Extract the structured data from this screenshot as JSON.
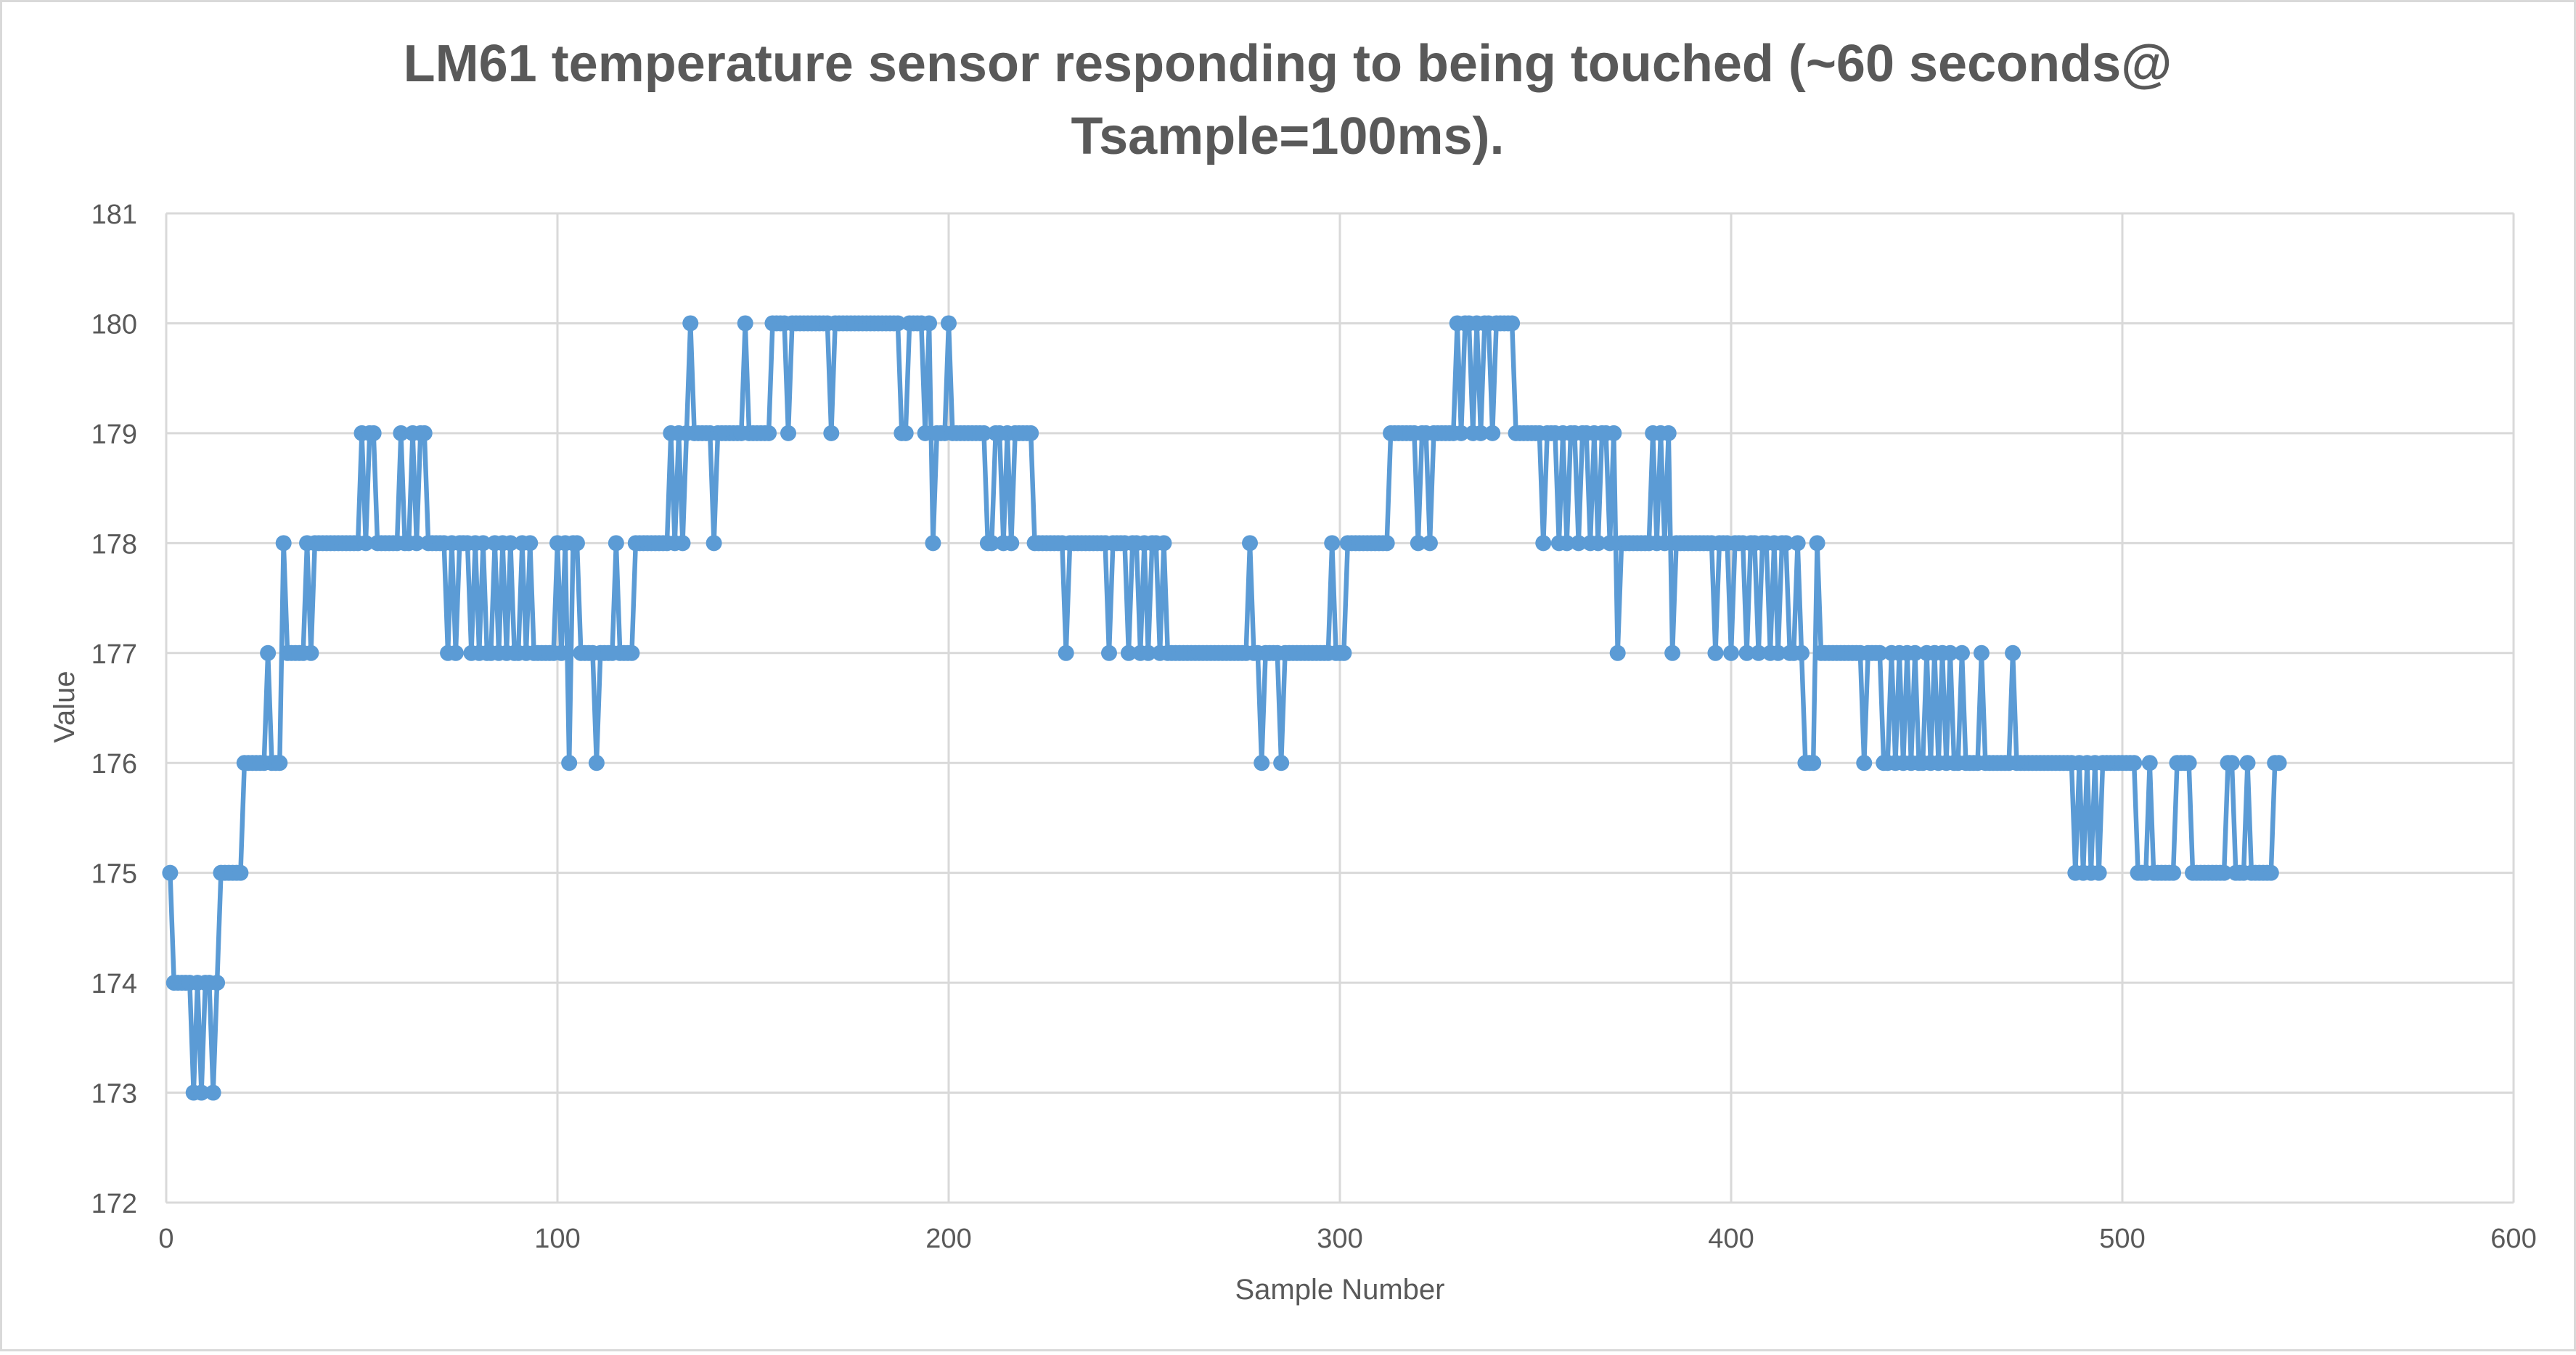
{
  "chart_data": {
    "type": "line",
    "title_lines": [
      "LM61 temperature sensor responding to being touched (~60 seconds@",
      "Tsample=100ms)."
    ],
    "xlabel": "Sample Number",
    "ylabel": "Value",
    "xlim": [
      0,
      600
    ],
    "ylim": [
      172,
      181
    ],
    "x_ticks": [
      0,
      100,
      200,
      300,
      400,
      500,
      600
    ],
    "y_ticks": [
      172,
      173,
      174,
      175,
      176,
      177,
      178,
      179,
      180,
      181
    ],
    "grid": true,
    "legend": "none",
    "markers": true,
    "colors": {
      "series": "#5B9BD5",
      "grid": "#D9D9D9",
      "title": "#595959",
      "axis_text": "#595959"
    },
    "series": [
      {
        "x_start": 1,
        "x_step": 1,
        "values": [
          175,
          174,
          174,
          174,
          174,
          174,
          173,
          174,
          173,
          174,
          174,
          173,
          174,
          175,
          175,
          175,
          175,
          175,
          175,
          176,
          176,
          176,
          176,
          176,
          176,
          177,
          176,
          176,
          176,
          178,
          177,
          177,
          177,
          177,
          177,
          178,
          177,
          178,
          178,
          178,
          178,
          178,
          178,
          178,
          178,
          178,
          178,
          178,
          178,
          179,
          178,
          179,
          179,
          178,
          178,
          178,
          178,
          178,
          178,
          179,
          178,
          178,
          179,
          178,
          179,
          179,
          178,
          178,
          178,
          178,
          178,
          177,
          178,
          177,
          178,
          178,
          178,
          177,
          178,
          177,
          178,
          177,
          177,
          178,
          177,
          178,
          177,
          178,
          177,
          177,
          178,
          177,
          178,
          177,
          177,
          177,
          177,
          177,
          177,
          178,
          177,
          178,
          176,
          178,
          178,
          177,
          177,
          177,
          177,
          176,
          177,
          177,
          177,
          177,
          178,
          177,
          177,
          177,
          177,
          178,
          178,
          178,
          178,
          178,
          178,
          178,
          178,
          178,
          179,
          178,
          179,
          178,
          179,
          180,
          179,
          179,
          179,
          179,
          179,
          178,
          179,
          179,
          179,
          179,
          179,
          179,
          179,
          180,
          179,
          179,
          179,
          179,
          179,
          179,
          180,
          180,
          180,
          180,
          179,
          180,
          180,
          180,
          180,
          180,
          180,
          180,
          180,
          180,
          180,
          179,
          180,
          180,
          180,
          180,
          180,
          180,
          180,
          180,
          180,
          180,
          180,
          180,
          180,
          180,
          180,
          180,
          180,
          179,
          179,
          180,
          180,
          180,
          180,
          179,
          180,
          178,
          179,
          179,
          179,
          180,
          179,
          179,
          179,
          179,
          179,
          179,
          179,
          179,
          179,
          178,
          178,
          179,
          179,
          178,
          179,
          178,
          179,
          179,
          179,
          179,
          179,
          178,
          178,
          178,
          178,
          178,
          178,
          178,
          178,
          177,
          178,
          178,
          178,
          178,
          178,
          178,
          178,
          178,
          178,
          178,
          177,
          178,
          178,
          178,
          178,
          177,
          178,
          178,
          177,
          178,
          177,
          178,
          178,
          177,
          178,
          177,
          177,
          177,
          177,
          177,
          177,
          177,
          177,
          177,
          177,
          177,
          177,
          177,
          177,
          177,
          177,
          177,
          177,
          177,
          177,
          177,
          178,
          177,
          177,
          176,
          177,
          177,
          177,
          177,
          176,
          177,
          177,
          177,
          177,
          177,
          177,
          177,
          177,
          177,
          177,
          177,
          177,
          178,
          177,
          177,
          177,
          178,
          178,
          178,
          178,
          178,
          178,
          178,
          178,
          178,
          178,
          178,
          179,
          179,
          179,
          179,
          179,
          179,
          179,
          178,
          179,
          179,
          178,
          179,
          179,
          179,
          179,
          179,
          179,
          180,
          179,
          180,
          180,
          179,
          180,
          179,
          180,
          180,
          179,
          180,
          180,
          180,
          180,
          180,
          179,
          179,
          179,
          179,
          179,
          179,
          179,
          178,
          179,
          179,
          179,
          178,
          179,
          178,
          179,
          179,
          178,
          179,
          179,
          178,
          179,
          178,
          179,
          179,
          178,
          179,
          177,
          178,
          178,
          178,
          178,
          178,
          178,
          178,
          178,
          179,
          178,
          179,
          178,
          179,
          177,
          178,
          178,
          178,
          178,
          178,
          178,
          178,
          178,
          178,
          178,
          177,
          178,
          178,
          178,
          177,
          178,
          178,
          178,
          177,
          178,
          178,
          177,
          178,
          178,
          177,
          178,
          177,
          178,
          178,
          177,
          177,
          178,
          177,
          176,
          176,
          176,
          178,
          177,
          177,
          177,
          177,
          177,
          177,
          177,
          177,
          177,
          177,
          177,
          176,
          177,
          177,
          177,
          177,
          176,
          176,
          177,
          176,
          177,
          176,
          177,
          176,
          177,
          176,
          176,
          177,
          176,
          177,
          176,
          177,
          176,
          177,
          176,
          176,
          177,
          176,
          176,
          176,
          176,
          177,
          176,
          176,
          176,
          176,
          176,
          176,
          176,
          177,
          176,
          176,
          176,
          176,
          176,
          176,
          176,
          176,
          176,
          176,
          176,
          176,
          176,
          176,
          176,
          175,
          176,
          175,
          176,
          175,
          176,
          175,
          176,
          176,
          176,
          176,
          176,
          176,
          176,
          176,
          176,
          175,
          175,
          175,
          176,
          175,
          175,
          175,
          175,
          175,
          175,
          176,
          176,
          176,
          176,
          175,
          175,
          175,
          175,
          175,
          175,
          175,
          175,
          175,
          176,
          176,
          175,
          175,
          175,
          176,
          175,
          175,
          175,
          175,
          175,
          175,
          176,
          176
        ]
      }
    ]
  }
}
